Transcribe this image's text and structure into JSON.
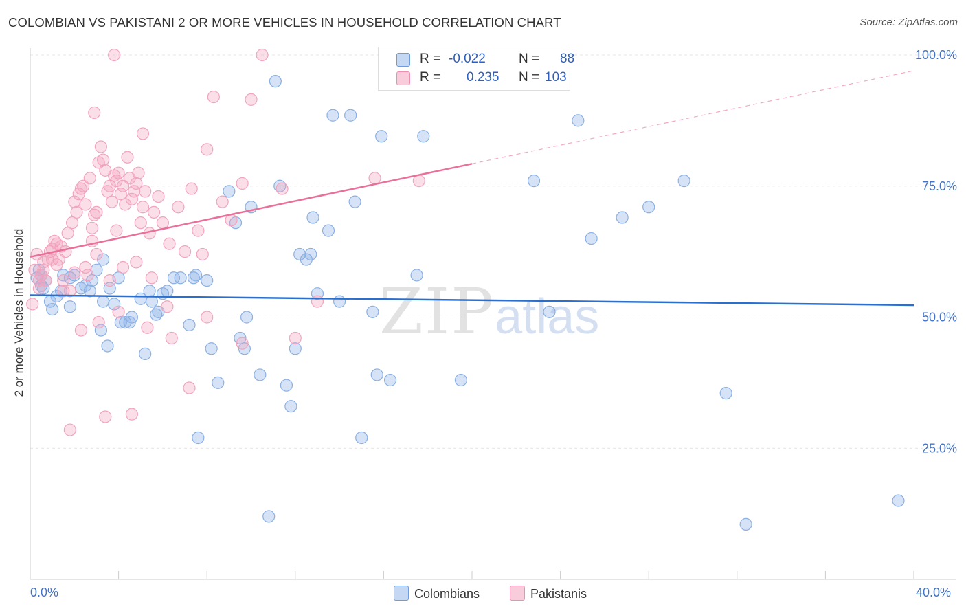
{
  "chart_data": {
    "type": "scatter",
    "title": "COLOMBIAN VS PAKISTANI 2 OR MORE VEHICLES IN HOUSEHOLD CORRELATION CHART",
    "source": "Source: ZipAtlas.com",
    "ylabel": "2 or more Vehicles in Household",
    "xlabel": "",
    "xlim": [
      0,
      40
    ],
    "ylim": [
      0,
      105
    ],
    "x_tick_labels": [
      "0.0%",
      "40.0%"
    ],
    "y_ticks": [
      25,
      50,
      75,
      100
    ],
    "y_tick_labels": [
      "25.0%",
      "50.0%",
      "75.0%",
      "100.0%"
    ],
    "grid": true,
    "legend": {
      "placement": "top-center",
      "entries": [
        {
          "name": "Colombians",
          "r_label": "R =",
          "r_value": "-0.022",
          "n_label": "N =",
          "n_value": "88"
        },
        {
          "name": "Pakistanis",
          "r_label": "R =",
          "r_value": "0.235",
          "n_label": "N =",
          "n_value": "103"
        }
      ]
    },
    "series": [
      {
        "name": "Colombians",
        "color": "#8ab0e4",
        "line_color": "#2b6fcc",
        "trend": {
          "x0": 0,
          "y0": 54.2,
          "x1": 40,
          "y1": 52.3,
          "solid_until": 40
        },
        "points": [
          [
            0.3,
            57.5
          ],
          [
            0.4,
            59
          ],
          [
            0.5,
            56
          ],
          [
            0.6,
            55.5
          ],
          [
            0.7,
            57
          ],
          [
            0.9,
            53
          ],
          [
            1.0,
            51.5
          ],
          [
            1.2,
            54
          ],
          [
            1.4,
            55
          ],
          [
            1.5,
            58
          ],
          [
            1.8,
            52
          ],
          [
            2.0,
            58
          ],
          [
            2.3,
            55.5
          ],
          [
            2.5,
            56
          ],
          [
            2.7,
            55
          ],
          [
            2.8,
            57
          ],
          [
            3.0,
            59
          ],
          [
            3.2,
            47.5
          ],
          [
            3.3,
            53
          ],
          [
            3.5,
            44.5
          ],
          [
            3.6,
            55.5
          ],
          [
            3.8,
            52.5
          ],
          [
            4.0,
            57.5
          ],
          [
            4.1,
            49
          ],
          [
            4.3,
            49
          ],
          [
            4.5,
            49
          ],
          [
            4.6,
            50
          ],
          [
            5.0,
            53.5
          ],
          [
            5.2,
            43
          ],
          [
            5.4,
            55
          ],
          [
            5.5,
            53
          ],
          [
            5.7,
            50.5
          ],
          [
            5.8,
            51
          ],
          [
            6.0,
            54.5
          ],
          [
            6.5,
            57.5
          ],
          [
            6.8,
            57.5
          ],
          [
            7.2,
            48.5
          ],
          [
            7.4,
            57.5
          ],
          [
            7.6,
            27
          ],
          [
            8.2,
            44
          ],
          [
            8.5,
            37.5
          ],
          [
            9.5,
            46
          ],
          [
            9.7,
            44
          ],
          [
            10.4,
            39
          ],
          [
            10.8,
            12
          ],
          [
            11.1,
            95
          ],
          [
            11.3,
            75
          ],
          [
            11.8,
            33
          ],
          [
            12.0,
            44
          ],
          [
            12.2,
            62
          ],
          [
            12.5,
            61
          ],
          [
            12.8,
            69
          ],
          [
            13.0,
            54.5
          ],
          [
            13.5,
            66.5
          ],
          [
            13.7,
            88.5
          ],
          [
            14.5,
            88.5
          ],
          [
            14.7,
            72
          ],
          [
            15.0,
            27
          ],
          [
            15.5,
            51
          ],
          [
            15.7,
            39
          ],
          [
            15.9,
            84.5
          ],
          [
            16.3,
            38
          ],
          [
            17.5,
            58
          ],
          [
            17.8,
            84.5
          ],
          [
            19.5,
            38
          ],
          [
            22.8,
            76
          ],
          [
            23.5,
            51
          ],
          [
            24.8,
            87.5
          ],
          [
            25.4,
            65
          ],
          [
            26.8,
            69
          ],
          [
            28.0,
            71
          ],
          [
            29.6,
            76
          ],
          [
            31.5,
            35.5
          ],
          [
            32.4,
            10.5
          ],
          [
            0.5,
            58
          ],
          [
            9.0,
            74
          ],
          [
            9.3,
            68
          ],
          [
            10.0,
            71
          ],
          [
            7.5,
            58
          ],
          [
            8.0,
            57
          ],
          [
            3.3,
            61
          ],
          [
            1.8,
            57.5
          ],
          [
            6.2,
            55
          ],
          [
            11.6,
            37
          ],
          [
            12.7,
            62
          ],
          [
            14.0,
            53
          ],
          [
            9.8,
            50
          ],
          [
            39.3,
            15
          ]
        ]
      },
      {
        "name": "Pakistanis",
        "color": "#f2a4bd",
        "line_color": "#e8709a",
        "trend": {
          "x0": 0,
          "y0": 61.5,
          "x1": 40,
          "y1": 97,
          "solid_until": 20
        },
        "points": [
          [
            0.1,
            52.5
          ],
          [
            0.2,
            59
          ],
          [
            0.3,
            62
          ],
          [
            0.4,
            55.5
          ],
          [
            0.5,
            58
          ],
          [
            0.6,
            60.5
          ],
          [
            0.7,
            57
          ],
          [
            0.8,
            61
          ],
          [
            0.9,
            62.5
          ],
          [
            1.0,
            63
          ],
          [
            1.1,
            64.5
          ],
          [
            1.2,
            60
          ],
          [
            1.3,
            61
          ],
          [
            1.4,
            63.5
          ],
          [
            1.5,
            57
          ],
          [
            1.6,
            62.5
          ],
          [
            1.7,
            66
          ],
          [
            1.8,
            55
          ],
          [
            1.9,
            68
          ],
          [
            2.0,
            72
          ],
          [
            2.1,
            70
          ],
          [
            2.2,
            73.5
          ],
          [
            2.3,
            74.5
          ],
          [
            2.4,
            75
          ],
          [
            2.5,
            71.5
          ],
          [
            2.6,
            58
          ],
          [
            2.7,
            76.5
          ],
          [
            2.8,
            67
          ],
          [
            2.9,
            69.5
          ],
          [
            3.0,
            70
          ],
          [
            3.1,
            79.5
          ],
          [
            3.2,
            82.5
          ],
          [
            3.3,
            80
          ],
          [
            3.4,
            78
          ],
          [
            3.5,
            74
          ],
          [
            3.6,
            75
          ],
          [
            3.7,
            72
          ],
          [
            3.8,
            77
          ],
          [
            3.9,
            76
          ],
          [
            4.0,
            77.5
          ],
          [
            4.1,
            73.5
          ],
          [
            4.2,
            75
          ],
          [
            4.3,
            71.5
          ],
          [
            4.4,
            80.5
          ],
          [
            4.5,
            76.5
          ],
          [
            4.6,
            72.5
          ],
          [
            4.7,
            74
          ],
          [
            4.8,
            75.5
          ],
          [
            4.9,
            77.5
          ],
          [
            5.0,
            68
          ],
          [
            5.1,
            71
          ],
          [
            5.2,
            74
          ],
          [
            5.4,
            66
          ],
          [
            5.6,
            70
          ],
          [
            5.8,
            73
          ],
          [
            6.0,
            68
          ],
          [
            6.3,
            64
          ],
          [
            6.7,
            71
          ],
          [
            7.0,
            62.5
          ],
          [
            7.3,
            74.5
          ],
          [
            7.6,
            66.5
          ],
          [
            8.0,
            82
          ],
          [
            8.3,
            92
          ],
          [
            8.7,
            72
          ],
          [
            9.1,
            68.5
          ],
          [
            9.6,
            75.5
          ],
          [
            10.0,
            91.5
          ],
          [
            10.5,
            100
          ],
          [
            11.4,
            74.5
          ],
          [
            12.0,
            46
          ],
          [
            13.0,
            53
          ],
          [
            15.6,
            76.5
          ],
          [
            17.6,
            76
          ],
          [
            3.8,
            100
          ],
          [
            2.9,
            89
          ],
          [
            5.1,
            85
          ],
          [
            3.4,
            31
          ],
          [
            4.6,
            31.5
          ],
          [
            7.2,
            36.5
          ],
          [
            1.8,
            28.5
          ],
          [
            2.3,
            47.5
          ],
          [
            3.1,
            49
          ],
          [
            4.0,
            51
          ],
          [
            5.3,
            48
          ],
          [
            6.4,
            46
          ],
          [
            8.0,
            50
          ],
          [
            9.6,
            45
          ],
          [
            1.5,
            55
          ],
          [
            2.0,
            58.5
          ],
          [
            2.5,
            59.5
          ],
          [
            3.0,
            62
          ],
          [
            3.6,
            57
          ],
          [
            4.2,
            59.5
          ],
          [
            4.8,
            60.5
          ],
          [
            5.5,
            57.5
          ],
          [
            6.2,
            52
          ],
          [
            0.4,
            57
          ],
          [
            0.6,
            59
          ],
          [
            1.0,
            61
          ],
          [
            1.2,
            64
          ],
          [
            7.8,
            62
          ],
          [
            2.8,
            64.5
          ],
          [
            3.9,
            66.5
          ]
        ]
      }
    ]
  },
  "watermark": {
    "zip": "ZIP",
    "atlas": "atlas"
  }
}
